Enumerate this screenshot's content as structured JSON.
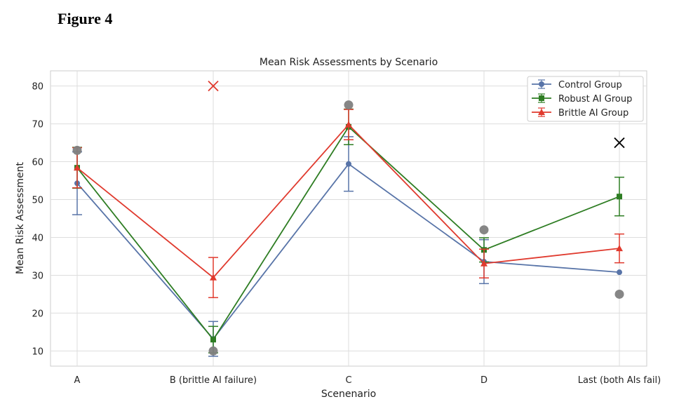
{
  "figure_label": "Figure 4",
  "chart_data": {
    "type": "line",
    "title": "Mean Risk Assessments by Scenario",
    "xlabel": "Scenenario",
    "ylabel": "Mean Risk Assessment",
    "categories": [
      "A",
      "B (brittle AI failure)",
      "C",
      "D",
      "Last (both AIs fail)"
    ],
    "ylim": [
      6,
      84
    ],
    "yticks": [
      10,
      20,
      30,
      40,
      50,
      60,
      70,
      80
    ],
    "grid": true,
    "legend_position": "top-right",
    "series": [
      {
        "name": "Control Group",
        "color": "#5874a8",
        "marker": "circle",
        "values": [
          54.3,
          13.2,
          59.4,
          33.6,
          30.8
        ],
        "errors": [
          8.3,
          4.6,
          7.2,
          5.8,
          0
        ]
      },
      {
        "name": "Robust AI Group",
        "color": "#2e7d23",
        "marker": "square",
        "values": [
          58.4,
          13.0,
          69.2,
          36.7,
          50.8
        ],
        "errors": [
          5.4,
          3.5,
          4.7,
          3.2,
          5.1
        ]
      },
      {
        "name": "Brittle AI Group",
        "color": "#e03a2e",
        "marker": "triangle",
        "values": [
          58.4,
          29.4,
          69.8,
          33.1,
          37.1
        ],
        "errors": [
          5.3,
          5.3,
          4.0,
          3.8,
          3.8
        ]
      }
    ],
    "reference_points": [
      {
        "category_index": 0,
        "value": 63,
        "marker": "circle",
        "color": "#7f7f7f"
      },
      {
        "category_index": 1,
        "value": 10,
        "marker": "circle",
        "color": "#7f7f7f"
      },
      {
        "category_index": 2,
        "value": 75,
        "marker": "circle",
        "color": "#7f7f7f"
      },
      {
        "category_index": 3,
        "value": 42,
        "marker": "circle",
        "color": "#7f7f7f"
      },
      {
        "category_index": 4,
        "value": 25,
        "marker": "circle",
        "color": "#7f7f7f"
      },
      {
        "category_index": 1,
        "value": 80,
        "marker": "x",
        "color": "#e03a2e"
      },
      {
        "category_index": 4,
        "value": 65,
        "marker": "x",
        "color": "#000000"
      }
    ]
  }
}
